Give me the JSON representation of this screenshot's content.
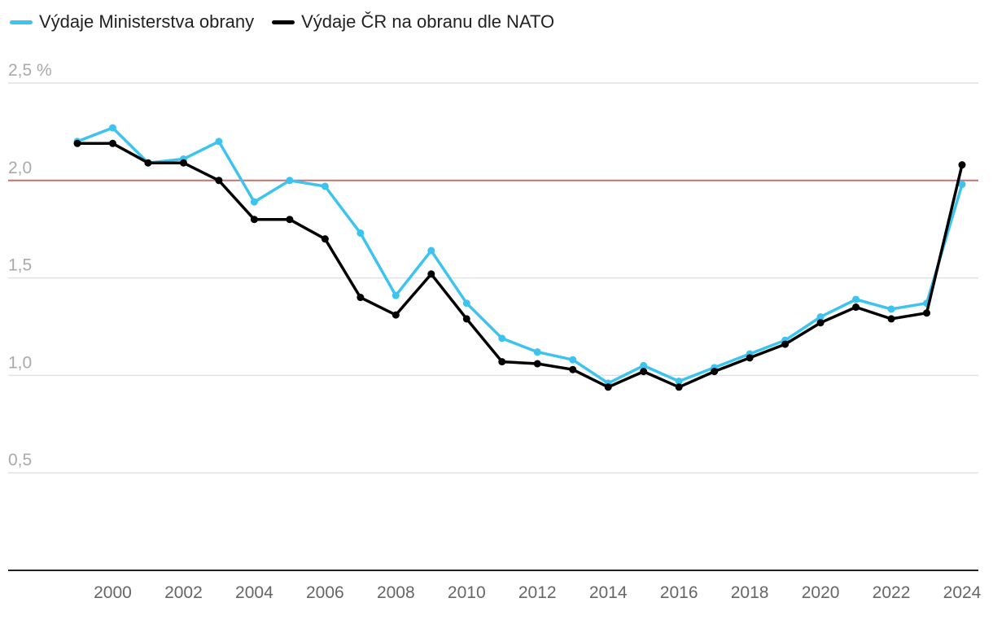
{
  "chart_data": {
    "type": "line",
    "title": "",
    "xlabel": "",
    "ylabel": "",
    "ylim": [
      0,
      2.5
    ],
    "xlim": [
      1999,
      2024
    ],
    "y_ticks": [
      {
        "value": 0.5,
        "label": "0,5"
      },
      {
        "value": 1.0,
        "label": "1,0"
      },
      {
        "value": 1.5,
        "label": "1,5"
      },
      {
        "value": 2.0,
        "label": "2,0"
      },
      {
        "value": 2.5,
        "label": "2,5 %"
      }
    ],
    "x_ticks": [
      {
        "value": 2000,
        "label": "2000"
      },
      {
        "value": 2002,
        "label": "2002"
      },
      {
        "value": 2004,
        "label": "2004"
      },
      {
        "value": 2006,
        "label": "2006"
      },
      {
        "value": 2008,
        "label": "2008"
      },
      {
        "value": 2010,
        "label": "2010"
      },
      {
        "value": 2012,
        "label": "2012"
      },
      {
        "value": 2014,
        "label": "2014"
      },
      {
        "value": 2016,
        "label": "2016"
      },
      {
        "value": 2018,
        "label": "2018"
      },
      {
        "value": 2020,
        "label": "2020"
      },
      {
        "value": 2022,
        "label": "2022"
      },
      {
        "value": 2024,
        "label": "2024"
      }
    ],
    "reference_line": {
      "value": 2.0,
      "color": "#c97070"
    },
    "grid": true,
    "legend_position": "top-left",
    "x": [
      1999,
      2000,
      2001,
      2002,
      2003,
      2004,
      2005,
      2006,
      2007,
      2008,
      2009,
      2010,
      2011,
      2012,
      2013,
      2014,
      2015,
      2016,
      2017,
      2018,
      2019,
      2020,
      2021,
      2022,
      2023,
      2024
    ],
    "series": [
      {
        "name": "Výdaje Ministerstva obrany",
        "color": "#3cc3f0",
        "values": [
          2.2,
          2.27,
          2.09,
          2.11,
          2.2,
          1.89,
          2.0,
          1.97,
          1.73,
          1.41,
          1.64,
          1.37,
          1.19,
          1.12,
          1.08,
          0.96,
          1.05,
          0.97,
          1.04,
          1.11,
          1.18,
          1.3,
          1.39,
          1.34,
          1.37,
          1.98
        ]
      },
      {
        "name": "Výdaje ČR na obranu dle NATO",
        "color": "#000000",
        "values": [
          2.19,
          2.19,
          2.09,
          2.09,
          2.0,
          1.8,
          1.8,
          1.7,
          1.4,
          1.31,
          1.52,
          1.29,
          1.07,
          1.06,
          1.03,
          0.94,
          1.02,
          0.94,
          1.02,
          1.09,
          1.16,
          1.27,
          1.35,
          1.29,
          1.32,
          2.08
        ]
      }
    ]
  }
}
